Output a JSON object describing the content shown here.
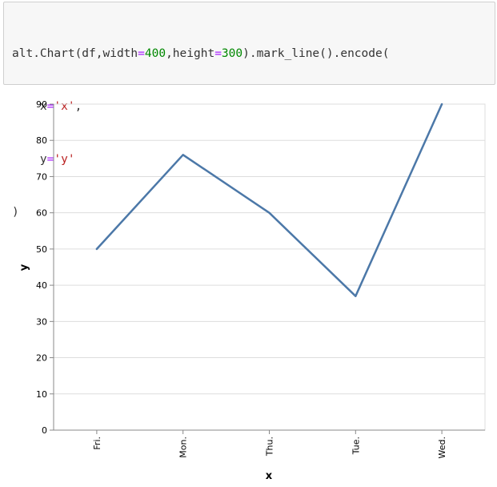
{
  "code": {
    "line1_prefix": "alt.Chart(df,width",
    "line1_op1": "=",
    "line1_width": "400",
    "line1_mid": ",height",
    "line1_op2": "=",
    "line1_height": "300",
    "line1_suffix": ").mark_line().encode(",
    "line2_indent": "    x",
    "line2_op": "=",
    "line2_str": "'x'",
    "line2_comma": ",",
    "line3_indent": "    y",
    "line3_op": "=",
    "line3_str": "'y'",
    "line4": ")"
  },
  "chart_data": {
    "type": "line",
    "categories": [
      "Fri.",
      "Mon.",
      "Thu.",
      "Tue.",
      "Wed."
    ],
    "values": [
      50,
      76,
      60,
      37,
      90
    ],
    "xlabel": "x",
    "ylabel": "y",
    "ylim": [
      0,
      90
    ],
    "yticks": [
      0,
      10,
      20,
      30,
      40,
      50,
      60,
      70,
      80,
      90
    ],
    "grid": true,
    "line_color": "#4c78a8"
  }
}
